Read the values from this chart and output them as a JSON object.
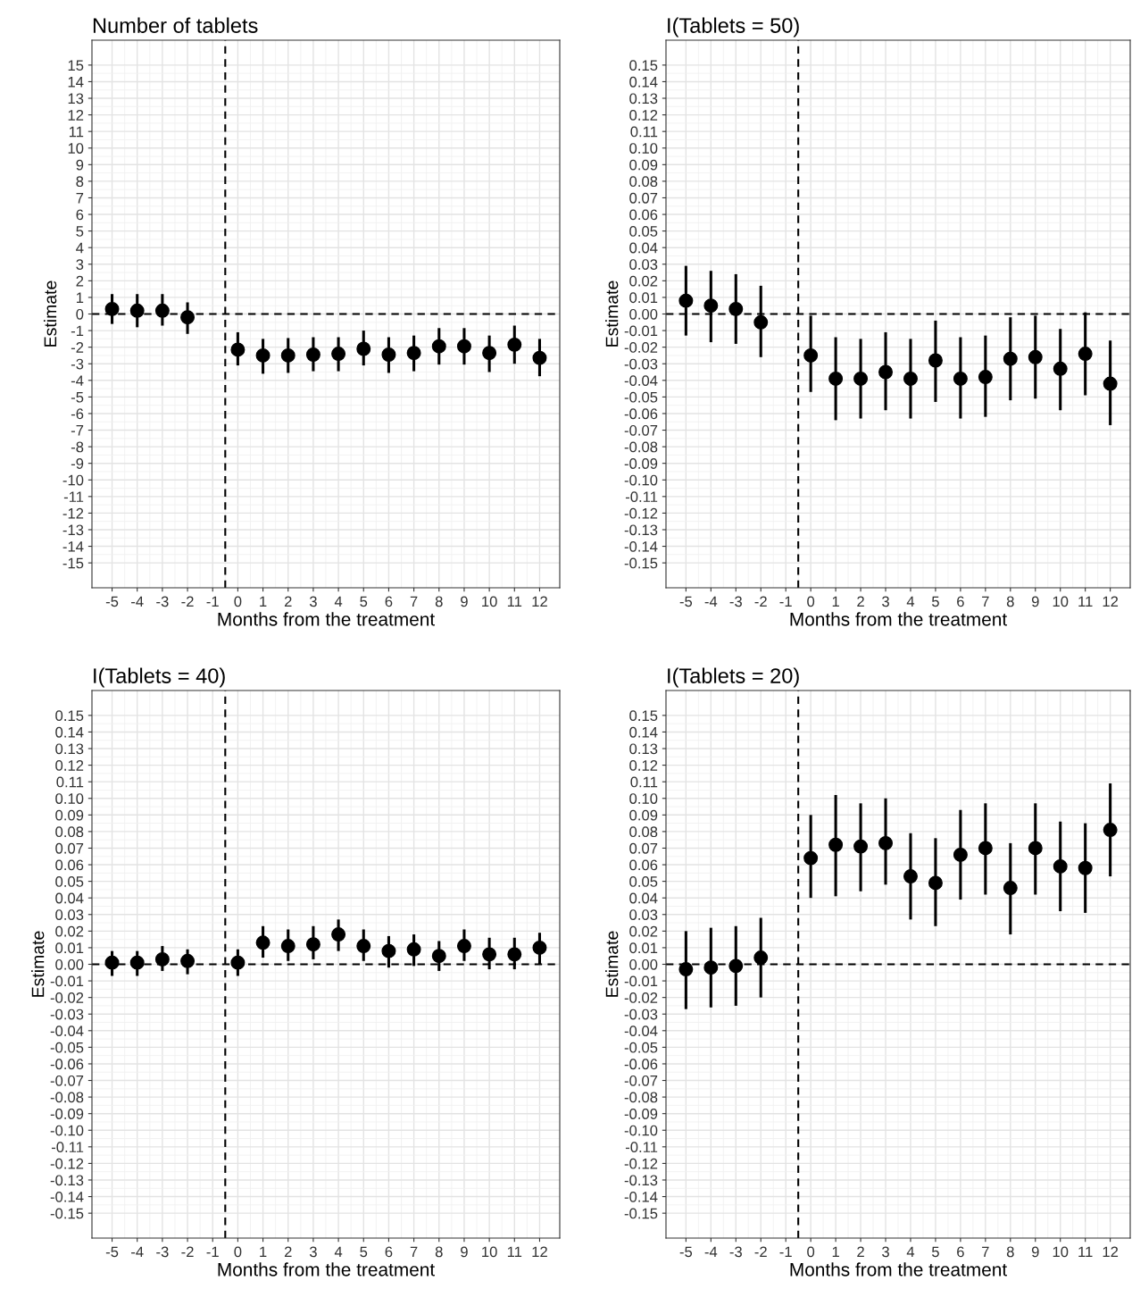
{
  "chart_data": [
    {
      "type": "scatter",
      "title": "Number of tablets",
      "xlabel": "Months from the treatment",
      "ylabel": "Estimate",
      "marker": "circle",
      "grid": true,
      "xlim": [
        -5.8,
        12.8
      ],
      "xticks": [
        -5,
        -4,
        -3,
        -2,
        -1,
        0,
        1,
        2,
        3,
        4,
        5,
        6,
        7,
        8,
        9,
        10,
        11,
        12
      ],
      "ylim": [
        -16.5,
        16.5
      ],
      "yticks": [
        -15,
        -14,
        -13,
        -12,
        -11,
        -10,
        -9,
        -8,
        -7,
        -6,
        -5,
        -4,
        -3,
        -2,
        -1,
        0,
        1,
        2,
        3,
        4,
        5,
        6,
        7,
        8,
        9,
        10,
        11,
        12,
        13,
        14,
        15
      ],
      "ref_lines": [
        {
          "axis": "x",
          "value": -0.5,
          "color": "#000000",
          "line_style": "dashed"
        },
        {
          "axis": "y",
          "value": 0,
          "color": "#000000",
          "line_style": "dashed"
        }
      ],
      "series": [
        {
          "color": "#000000",
          "x": [
            -5,
            -4,
            -3,
            -2,
            0,
            1,
            2,
            3,
            4,
            5,
            6,
            7,
            8,
            9,
            10,
            11,
            12
          ],
          "values": [
            0.3,
            0.2,
            0.2,
            -0.2,
            -2.15,
            -2.5,
            -2.5,
            -2.45,
            -2.4,
            -2.1,
            -2.45,
            -2.35,
            -1.95,
            -1.95,
            -2.35,
            -1.85,
            -2.65
          ],
          "errors": [
            [
              -0.6,
              1.2
            ],
            [
              -0.8,
              1.2
            ],
            [
              -0.7,
              1.2
            ],
            [
              -1.2,
              0.7
            ],
            [
              -3.1,
              -1.1
            ],
            [
              -3.6,
              -1.5
            ],
            [
              -3.55,
              -1.45
            ],
            [
              -3.45,
              -1.4
            ],
            [
              -3.45,
              -1.4
            ],
            [
              -3.1,
              -1.0
            ],
            [
              -3.55,
              -1.4
            ],
            [
              -3.45,
              -1.3
            ],
            [
              -3.05,
              -0.85
            ],
            [
              -3.05,
              -0.85
            ],
            [
              -3.5,
              -1.3
            ],
            [
              -3.0,
              -0.7
            ],
            [
              -3.75,
              -1.5
            ]
          ]
        }
      ]
    },
    {
      "type": "scatter",
      "title": "I(Tablets = 50)",
      "xlabel": "Months from the treatment",
      "ylabel": "Estimate",
      "marker": "circle",
      "grid": true,
      "xlim": [
        -5.8,
        12.8
      ],
      "xticks": [
        -5,
        -4,
        -3,
        -2,
        -1,
        0,
        1,
        2,
        3,
        4,
        5,
        6,
        7,
        8,
        9,
        10,
        11,
        12
      ],
      "ylim": [
        -0.165,
        0.165
      ],
      "yticks": [
        {
          "value": -0.15,
          "label": "-0.15"
        },
        {
          "value": -0.14,
          "label": "-0.14"
        },
        {
          "value": -0.13,
          "label": "-0.13"
        },
        {
          "value": -0.12,
          "label": "-0.12"
        },
        {
          "value": -0.11,
          "label": "-0.11"
        },
        {
          "value": -0.1,
          "label": "-0.10"
        },
        {
          "value": -0.09,
          "label": "-0.09"
        },
        {
          "value": -0.08,
          "label": "-0.08"
        },
        {
          "value": -0.07,
          "label": "-0.07"
        },
        {
          "value": -0.06,
          "label": "-0.06"
        },
        {
          "value": -0.05,
          "label": "-0.05"
        },
        {
          "value": -0.04,
          "label": "-0.04"
        },
        {
          "value": -0.03,
          "label": "-0.03"
        },
        {
          "value": -0.02,
          "label": "-0.02"
        },
        {
          "value": -0.01,
          "label": "-0.01"
        },
        {
          "value": 0,
          "label": "0.00"
        },
        {
          "value": 0.01,
          "label": "0.01"
        },
        {
          "value": 0.02,
          "label": "0.02"
        },
        {
          "value": 0.03,
          "label": "0.03"
        },
        {
          "value": 0.04,
          "label": "0.04"
        },
        {
          "value": 0.05,
          "label": "0.05"
        },
        {
          "value": 0.06,
          "label": "0.06"
        },
        {
          "value": 0.07,
          "label": "0.07"
        },
        {
          "value": 0.08,
          "label": "0.08"
        },
        {
          "value": 0.09,
          "label": "0.09"
        },
        {
          "value": 0.1,
          "label": "0.10"
        },
        {
          "value": 0.11,
          "label": "0.11"
        },
        {
          "value": 0.12,
          "label": "0.12"
        },
        {
          "value": 0.13,
          "label": "0.13"
        },
        {
          "value": 0.14,
          "label": "0.14"
        },
        {
          "value": 0.15,
          "label": "0.15"
        }
      ],
      "ref_lines": [
        {
          "axis": "x",
          "value": -0.5,
          "color": "#000000",
          "line_style": "dashed"
        },
        {
          "axis": "y",
          "value": 0,
          "color": "#000000",
          "line_style": "dashed"
        }
      ],
      "series": [
        {
          "color": "#000000",
          "x": [
            -5,
            -4,
            -3,
            -2,
            0,
            1,
            2,
            3,
            4,
            5,
            6,
            7,
            8,
            9,
            10,
            11,
            12
          ],
          "values": [
            0.008,
            0.005,
            0.003,
            -0.005,
            -0.025,
            -0.039,
            -0.039,
            -0.035,
            -0.039,
            -0.028,
            -0.039,
            -0.038,
            -0.027,
            -0.026,
            -0.033,
            -0.024,
            -0.042
          ],
          "errors": [
            [
              -0.013,
              0.029
            ],
            [
              -0.017,
              0.026
            ],
            [
              -0.018,
              0.024
            ],
            [
              -0.026,
              0.017
            ],
            [
              -0.047,
              -0.001
            ],
            [
              -0.064,
              -0.014
            ],
            [
              -0.063,
              -0.015
            ],
            [
              -0.058,
              -0.011
            ],
            [
              -0.063,
              -0.015
            ],
            [
              -0.053,
              -0.004
            ],
            [
              -0.063,
              -0.014
            ],
            [
              -0.062,
              -0.013
            ],
            [
              -0.052,
              -0.002
            ],
            [
              -0.051,
              -0.001
            ],
            [
              -0.058,
              -0.009
            ],
            [
              -0.049,
              0.001
            ],
            [
              -0.067,
              -0.016
            ]
          ]
        }
      ]
    },
    {
      "type": "scatter",
      "title": "I(Tablets = 40)",
      "xlabel": "Months from the treatment",
      "ylabel": "Estimate",
      "marker": "circle",
      "grid": true,
      "xlim": [
        -5.8,
        12.8
      ],
      "xticks": [
        -5,
        -4,
        -3,
        -2,
        -1,
        0,
        1,
        2,
        3,
        4,
        5,
        6,
        7,
        8,
        9,
        10,
        11,
        12
      ],
      "ylim": [
        -0.165,
        0.165
      ],
      "yticks": [
        {
          "value": -0.15,
          "label": "-0.15"
        },
        {
          "value": -0.14,
          "label": "-0.14"
        },
        {
          "value": -0.13,
          "label": "-0.13"
        },
        {
          "value": -0.12,
          "label": "-0.12"
        },
        {
          "value": -0.11,
          "label": "-0.11"
        },
        {
          "value": -0.1,
          "label": "-0.10"
        },
        {
          "value": -0.09,
          "label": "-0.09"
        },
        {
          "value": -0.08,
          "label": "-0.08"
        },
        {
          "value": -0.07,
          "label": "-0.07"
        },
        {
          "value": -0.06,
          "label": "-0.06"
        },
        {
          "value": -0.05,
          "label": "-0.05"
        },
        {
          "value": -0.04,
          "label": "-0.04"
        },
        {
          "value": -0.03,
          "label": "-0.03"
        },
        {
          "value": -0.02,
          "label": "-0.02"
        },
        {
          "value": -0.01,
          "label": "-0.01"
        },
        {
          "value": 0,
          "label": "0.00"
        },
        {
          "value": 0.01,
          "label": "0.01"
        },
        {
          "value": 0.02,
          "label": "0.02"
        },
        {
          "value": 0.03,
          "label": "0.03"
        },
        {
          "value": 0.04,
          "label": "0.04"
        },
        {
          "value": 0.05,
          "label": "0.05"
        },
        {
          "value": 0.06,
          "label": "0.06"
        },
        {
          "value": 0.07,
          "label": "0.07"
        },
        {
          "value": 0.08,
          "label": "0.08"
        },
        {
          "value": 0.09,
          "label": "0.09"
        },
        {
          "value": 0.1,
          "label": "0.10"
        },
        {
          "value": 0.11,
          "label": "0.11"
        },
        {
          "value": 0.12,
          "label": "0.12"
        },
        {
          "value": 0.13,
          "label": "0.13"
        },
        {
          "value": 0.14,
          "label": "0.14"
        },
        {
          "value": 0.15,
          "label": "0.15"
        }
      ],
      "ref_lines": [
        {
          "axis": "x",
          "value": -0.5,
          "color": "#000000",
          "line_style": "dashed"
        },
        {
          "axis": "y",
          "value": 0,
          "color": "#000000",
          "line_style": "dashed"
        }
      ],
      "series": [
        {
          "color": "#000000",
          "x": [
            -5,
            -4,
            -3,
            -2,
            0,
            1,
            2,
            3,
            4,
            5,
            6,
            7,
            8,
            9,
            10,
            11,
            12
          ],
          "values": [
            0.001,
            0.001,
            0.003,
            0.002,
            0.001,
            0.013,
            0.011,
            0.012,
            0.018,
            0.011,
            0.008,
            0.009,
            0.005,
            0.011,
            0.006,
            0.006,
            0.01
          ],
          "errors": [
            [
              -0.007,
              0.008
            ],
            [
              -0.007,
              0.008
            ],
            [
              -0.004,
              0.011
            ],
            [
              -0.006,
              0.009
            ],
            [
              -0.007,
              0.009
            ],
            [
              0.004,
              0.023
            ],
            [
              0.002,
              0.021
            ],
            [
              0.003,
              0.023
            ],
            [
              0.008,
              0.027
            ],
            [
              0.002,
              0.021
            ],
            [
              -0.002,
              0.017
            ],
            [
              -0.001,
              0.018
            ],
            [
              -0.004,
              0.014
            ],
            [
              0.002,
              0.021
            ],
            [
              -0.003,
              0.016
            ],
            [
              -0.003,
              0.016
            ],
            [
              0.0,
              0.019
            ]
          ]
        }
      ]
    },
    {
      "type": "scatter",
      "title": "I(Tablets = 20)",
      "xlabel": "Months from the treatment",
      "ylabel": "Estimate",
      "marker": "circle",
      "grid": true,
      "xlim": [
        -5.8,
        12.8
      ],
      "xticks": [
        -5,
        -4,
        -3,
        -2,
        -1,
        0,
        1,
        2,
        3,
        4,
        5,
        6,
        7,
        8,
        9,
        10,
        11,
        12
      ],
      "ylim": [
        -0.165,
        0.165
      ],
      "yticks": [
        {
          "value": -0.15,
          "label": "-0.15"
        },
        {
          "value": -0.14,
          "label": "-0.14"
        },
        {
          "value": -0.13,
          "label": "-0.13"
        },
        {
          "value": -0.12,
          "label": "-0.12"
        },
        {
          "value": -0.11,
          "label": "-0.11"
        },
        {
          "value": -0.1,
          "label": "-0.10"
        },
        {
          "value": -0.09,
          "label": "-0.09"
        },
        {
          "value": -0.08,
          "label": "-0.08"
        },
        {
          "value": -0.07,
          "label": "-0.07"
        },
        {
          "value": -0.06,
          "label": "-0.06"
        },
        {
          "value": -0.05,
          "label": "-0.05"
        },
        {
          "value": -0.04,
          "label": "-0.04"
        },
        {
          "value": -0.03,
          "label": "-0.03"
        },
        {
          "value": -0.02,
          "label": "-0.02"
        },
        {
          "value": -0.01,
          "label": "-0.01"
        },
        {
          "value": 0,
          "label": "0.00"
        },
        {
          "value": 0.01,
          "label": "0.01"
        },
        {
          "value": 0.02,
          "label": "0.02"
        },
        {
          "value": 0.03,
          "label": "0.03"
        },
        {
          "value": 0.04,
          "label": "0.04"
        },
        {
          "value": 0.05,
          "label": "0.05"
        },
        {
          "value": 0.06,
          "label": "0.06"
        },
        {
          "value": 0.07,
          "label": "0.07"
        },
        {
          "value": 0.08,
          "label": "0.08"
        },
        {
          "value": 0.09,
          "label": "0.09"
        },
        {
          "value": 0.1,
          "label": "0.10"
        },
        {
          "value": 0.11,
          "label": "0.11"
        },
        {
          "value": 0.12,
          "label": "0.12"
        },
        {
          "value": 0.13,
          "label": "0.13"
        },
        {
          "value": 0.14,
          "label": "0.14"
        },
        {
          "value": 0.15,
          "label": "0.15"
        }
      ],
      "ref_lines": [
        {
          "axis": "x",
          "value": -0.5,
          "color": "#000000",
          "line_style": "dashed"
        },
        {
          "axis": "y",
          "value": 0,
          "color": "#000000",
          "line_style": "dashed"
        }
      ],
      "series": [
        {
          "color": "#000000",
          "x": [
            -5,
            -4,
            -3,
            -2,
            0,
            1,
            2,
            3,
            4,
            5,
            6,
            7,
            8,
            9,
            10,
            11,
            12
          ],
          "values": [
            -0.003,
            -0.002,
            -0.001,
            0.004,
            0.064,
            0.072,
            0.071,
            0.073,
            0.053,
            0.049,
            0.066,
            0.07,
            0.046,
            0.07,
            0.059,
            0.058,
            0.081
          ],
          "errors": [
            [
              -0.027,
              0.02
            ],
            [
              -0.026,
              0.022
            ],
            [
              -0.025,
              0.023
            ],
            [
              -0.02,
              0.028
            ],
            [
              0.04,
              0.09
            ],
            [
              0.041,
              0.102
            ],
            [
              0.044,
              0.097
            ],
            [
              0.048,
              0.1
            ],
            [
              0.027,
              0.079
            ],
            [
              0.023,
              0.076
            ],
            [
              0.039,
              0.093
            ],
            [
              0.042,
              0.097
            ],
            [
              0.018,
              0.073
            ],
            [
              0.042,
              0.097
            ],
            [
              0.032,
              0.086
            ],
            [
              0.031,
              0.085
            ],
            [
              0.053,
              0.109
            ]
          ]
        }
      ]
    }
  ]
}
